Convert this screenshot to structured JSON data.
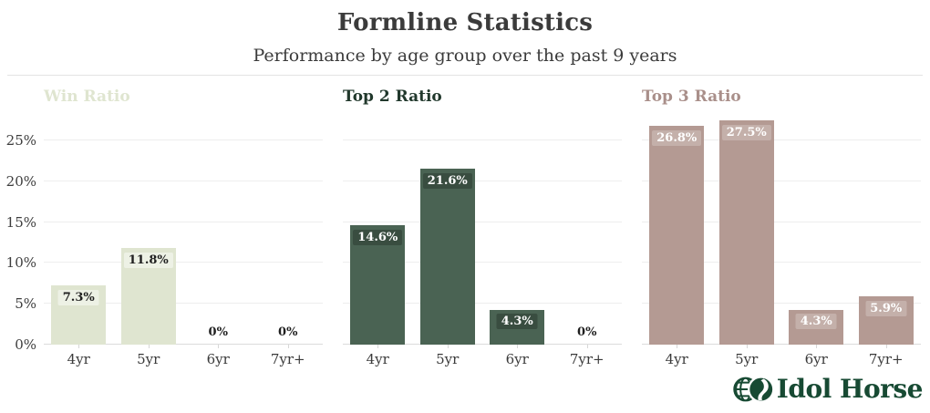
{
  "header": {
    "title": "Formline Statistics",
    "subtitle": "Performance by age group over the past 9 years"
  },
  "chart_data": [
    {
      "type": "bar",
      "title": "Win Ratio",
      "categories": [
        "4yr",
        "5yr",
        "6yr",
        "7yr+"
      ],
      "values": [
        7.3,
        11.8,
        0,
        0
      ],
      "labels": [
        "7.3%",
        "11.8%",
        "0%",
        "0%"
      ],
      "bar_color": "#dfe5d0",
      "title_color": "#dfe5d0",
      "label_variant": "dark",
      "ylim": [
        0,
        28.25
      ],
      "yticks": [
        0,
        5,
        10,
        15,
        20,
        25
      ],
      "ytick_labels": [
        "0%",
        "5%",
        "10%",
        "15%",
        "20%",
        "25%"
      ],
      "show_y_axis": true,
      "grid": true
    },
    {
      "type": "bar",
      "title": "Top 2 Ratio",
      "categories": [
        "4yr",
        "5yr",
        "6yr",
        "7yr+"
      ],
      "values": [
        14.6,
        21.6,
        4.3,
        0
      ],
      "labels": [
        "14.6%",
        "21.6%",
        "4.3%",
        "0%"
      ],
      "bar_color": "#4a6353",
      "title_color": "#21382c",
      "label_variant": "light-dark-chip",
      "ylim": [
        0,
        28.25
      ],
      "yticks": [
        0,
        5,
        10,
        15,
        20,
        25
      ],
      "ytick_labels": [],
      "show_y_axis": false,
      "grid": true
    },
    {
      "type": "bar",
      "title": "Top 3 Ratio",
      "categories": [
        "4yr",
        "5yr",
        "6yr",
        "7yr+"
      ],
      "values": [
        26.8,
        27.5,
        4.3,
        5.9
      ],
      "labels": [
        "26.8%",
        "27.5%",
        "4.3%",
        "5.9%"
      ],
      "bar_color": "#b49a93",
      "title_color": "#a98f8a",
      "label_variant": "light-light-chip",
      "ylim": [
        0,
        28.25
      ],
      "yticks": [
        0,
        5,
        10,
        15,
        20,
        25
      ],
      "ytick_labels": [],
      "show_y_axis": false,
      "grid": true
    }
  ],
  "footer": {
    "logo_text": "Idol Horse",
    "logo_color": "#174a33"
  }
}
